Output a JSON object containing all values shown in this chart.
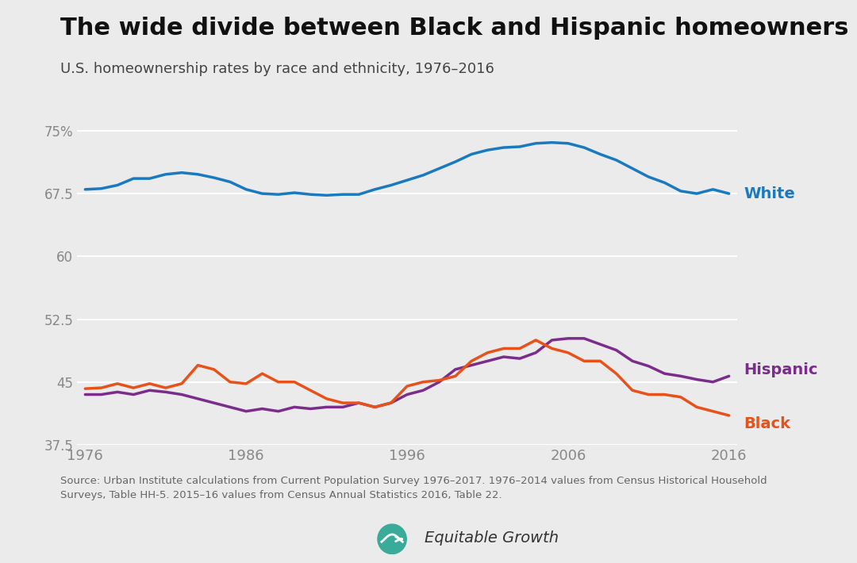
{
  "title": "The wide divide between Black and Hispanic homeowners",
  "subtitle": "U.S. homeownership rates by race and ethnicity, 1976–2016",
  "source_text": "Source: Urban Institute calculations from Current Population Survey 1976–2017. 1976–2014 values from Census Historical Household\nSurveys, Table HH-5. 2015–16 values from Census Annual Statistics 2016, Table 22.",
  "bg_color": "#ebebeb",
  "white_color": "#1a7abf",
  "hispanic_color": "#7b2d8b",
  "black_color": "#e8521a",
  "years": [
    1976,
    1977,
    1978,
    1979,
    1980,
    1981,
    1982,
    1983,
    1984,
    1985,
    1986,
    1987,
    1988,
    1989,
    1990,
    1991,
    1992,
    1993,
    1994,
    1995,
    1996,
    1997,
    1998,
    1999,
    2000,
    2001,
    2002,
    2003,
    2004,
    2005,
    2006,
    2007,
    2008,
    2009,
    2010,
    2011,
    2012,
    2013,
    2014,
    2015,
    2016
  ],
  "white": [
    68.0,
    68.1,
    68.5,
    69.3,
    69.3,
    69.8,
    70.0,
    69.8,
    69.4,
    68.9,
    68.0,
    67.5,
    67.4,
    67.6,
    67.4,
    67.3,
    67.4,
    67.4,
    68.0,
    68.5,
    69.1,
    69.7,
    70.5,
    71.3,
    72.2,
    72.7,
    73.0,
    73.1,
    73.5,
    73.6,
    73.5,
    73.0,
    72.2,
    71.5,
    70.5,
    69.5,
    68.8,
    67.8,
    67.5,
    68.0,
    67.5
  ],
  "hispanic": [
    43.5,
    43.5,
    43.8,
    43.5,
    44.0,
    43.8,
    43.5,
    43.0,
    42.5,
    42.0,
    41.5,
    41.8,
    41.5,
    42.0,
    41.8,
    42.0,
    42.0,
    42.5,
    42.0,
    42.5,
    43.5,
    44.0,
    45.0,
    46.5,
    47.0,
    47.5,
    48.0,
    47.8,
    48.5,
    50.0,
    50.2,
    50.2,
    49.5,
    48.8,
    47.5,
    46.9,
    46.0,
    45.7,
    45.3,
    45.0,
    45.7
  ],
  "black": [
    44.2,
    44.3,
    44.8,
    44.3,
    44.8,
    44.3,
    44.8,
    47.0,
    46.5,
    45.0,
    44.8,
    46.0,
    45.0,
    45.0,
    44.0,
    43.0,
    42.5,
    42.5,
    42.0,
    42.5,
    44.5,
    45.0,
    45.2,
    45.7,
    47.5,
    48.5,
    49.0,
    49.0,
    50.0,
    49.0,
    48.5,
    47.5,
    47.5,
    46.0,
    44.0,
    43.5,
    43.5,
    43.2,
    42.0,
    41.5,
    41.0
  ],
  "ylim": [
    37.5,
    76.5
  ],
  "yticks": [
    37.5,
    45.0,
    52.5,
    60.0,
    67.5,
    75.0
  ],
  "ytick_labels": [
    "37.5",
    "45",
    "52.5",
    "60",
    "67.5",
    "75%"
  ],
  "xlim": [
    1975.5,
    2016.5
  ],
  "xticks": [
    1976,
    1986,
    1996,
    2006,
    2016
  ],
  "line_width": 2.5,
  "grid_color": "#ffffff",
  "tick_color": "#888888",
  "label_fontsize": 14,
  "title_fontsize": 22,
  "subtitle_fontsize": 13,
  "source_fontsize": 9.5
}
